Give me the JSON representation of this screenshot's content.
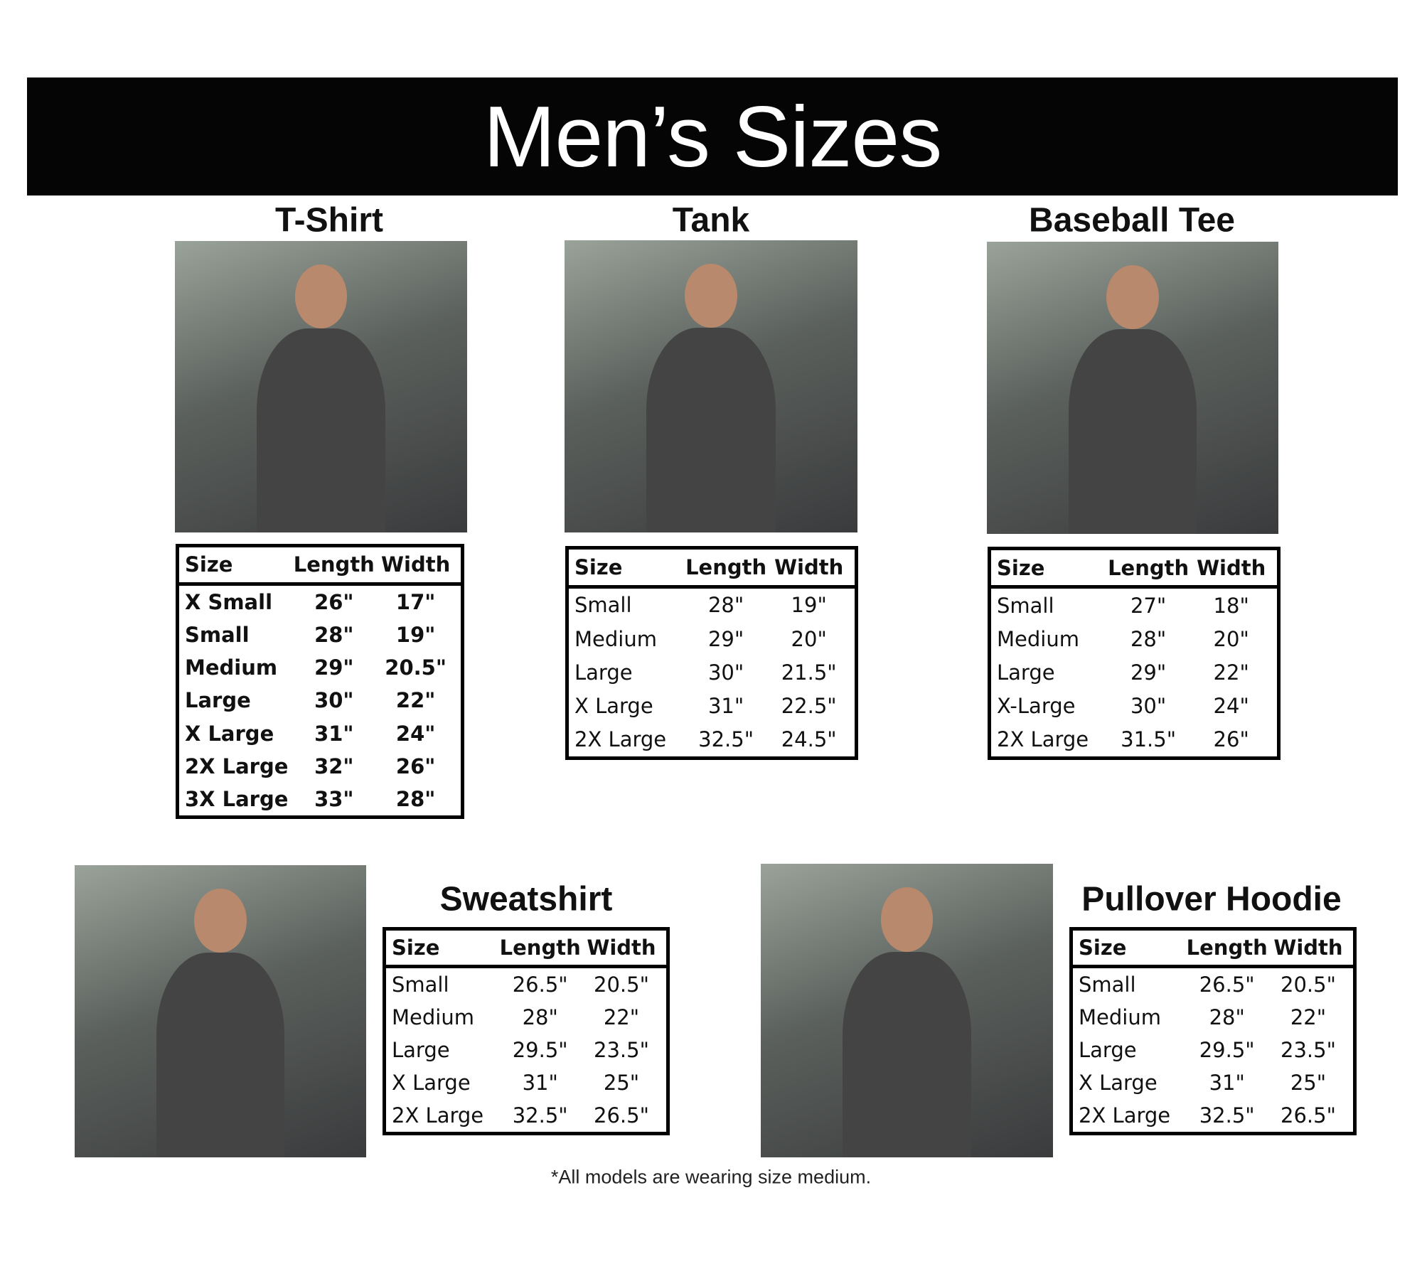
{
  "header": {
    "title": "Men’s Sizes"
  },
  "products": [
    {
      "name": "T-Shirt",
      "columns": [
        "Size",
        "Length",
        "Width"
      ],
      "rows": [
        [
          "X Small",
          "26\"",
          "17\""
        ],
        [
          "Small",
          "28\"",
          "19\""
        ],
        [
          "Medium",
          "29\"",
          "20.5\""
        ],
        [
          "Large",
          "30\"",
          "22\""
        ],
        [
          "X Large",
          "31\"",
          "24\""
        ],
        [
          "2X Large",
          "32\"",
          "26\""
        ],
        [
          "3X Large",
          "33\"",
          "28\""
        ]
      ]
    },
    {
      "name": "Tank",
      "columns": [
        "Size",
        "Length",
        "Width"
      ],
      "rows": [
        [
          "Small",
          "28\"",
          "19\""
        ],
        [
          "Medium",
          "29\"",
          "20\""
        ],
        [
          "Large",
          "30\"",
          "21.5\""
        ],
        [
          "X Large",
          "31\"",
          "22.5\""
        ],
        [
          "2X Large",
          "32.5\"",
          "24.5\""
        ]
      ]
    },
    {
      "name": "Baseball Tee",
      "columns": [
        "Size",
        "Length",
        "Width"
      ],
      "rows": [
        [
          "Small",
          "27\"",
          "18\""
        ],
        [
          "Medium",
          "28\"",
          "20\""
        ],
        [
          "Large",
          "29\"",
          "22\""
        ],
        [
          "X-Large",
          "30\"",
          "24\""
        ],
        [
          "2X Large",
          "31.5\"",
          "26\""
        ]
      ]
    },
    {
      "name": "Sweatshirt",
      "columns": [
        "Size",
        "Length",
        "Width"
      ],
      "rows": [
        [
          "Small",
          "26.5\"",
          "20.5\""
        ],
        [
          "Medium",
          "28\"",
          "22\""
        ],
        [
          "Large",
          "29.5\"",
          "23.5\""
        ],
        [
          "X Large",
          "31\"",
          "25\""
        ],
        [
          "2X Large",
          "32.5\"",
          "26.5\""
        ]
      ]
    },
    {
      "name": "Pullover Hoodie",
      "columns": [
        "Size",
        "Length",
        "Width"
      ],
      "rows": [
        [
          "Small",
          "26.5\"",
          "20.5\""
        ],
        [
          "Medium",
          "28\"",
          "22\""
        ],
        [
          "Large",
          "29.5\"",
          "23.5\""
        ],
        [
          "X Large",
          "31\"",
          "25\""
        ],
        [
          "2X Large",
          "32.5\"",
          "26.5\""
        ]
      ]
    }
  ],
  "footnote": "*All models are wearing size medium."
}
